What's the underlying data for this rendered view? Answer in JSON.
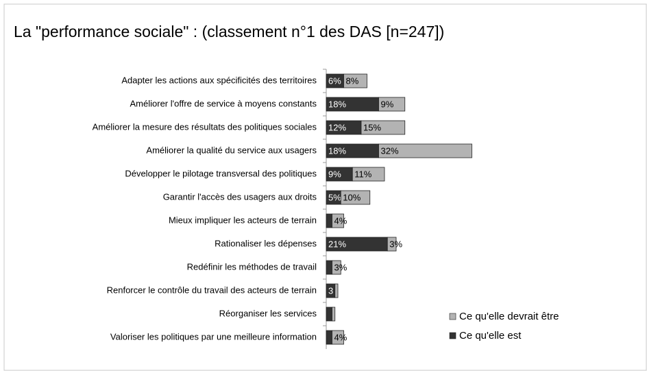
{
  "chart_data": {
    "type": "stacked-bar",
    "orientation": "horizontal",
    "title": "La \"performance sociale\" : (classement n°1 des DAS [n=247])",
    "categories": [
      "Adapter les actions aux spécificités des territoires",
      "Améliorer l'offre de service à moyens constants",
      "Améliorer la mesure des résultats des politiques sociales",
      "Améliorer la qualité du service aux usagers",
      "Développer le pilotage transversal des politiques",
      "Garantir l'accès des usagers aux droits",
      "Mieux impliquer les acteurs de terrain",
      "Rationaliser les dépenses",
      "Redéfinir les méthodes de travail",
      "Renforcer le contrôle du travail des acteurs de terrain",
      "Réorganiser les services",
      "Valoriser les politiques par une meilleure information"
    ],
    "series": [
      {
        "name": "Ce qu'elle est",
        "color": "#333333",
        "values": [
          6,
          18,
          12,
          18,
          9,
          5,
          2,
          21,
          2,
          3,
          2,
          2
        ],
        "value_labels": [
          "6%",
          "18%",
          "12%",
          "18%",
          "9%",
          "5%",
          null,
          "21%",
          null,
          "3",
          null,
          null
        ]
      },
      {
        "name": "Ce qu'elle devrait être",
        "color": "#b3b3b3",
        "values": [
          8,
          9,
          15,
          32,
          11,
          10,
          4,
          3,
          3,
          1,
          1,
          4
        ],
        "value_labels": [
          "8%",
          "9%",
          "15%",
          "32%",
          "11%",
          "10%",
          "4%",
          "3%",
          "3%",
          null,
          null,
          "4%"
        ]
      }
    ],
    "xlim": [
      0,
      50
    ]
  }
}
